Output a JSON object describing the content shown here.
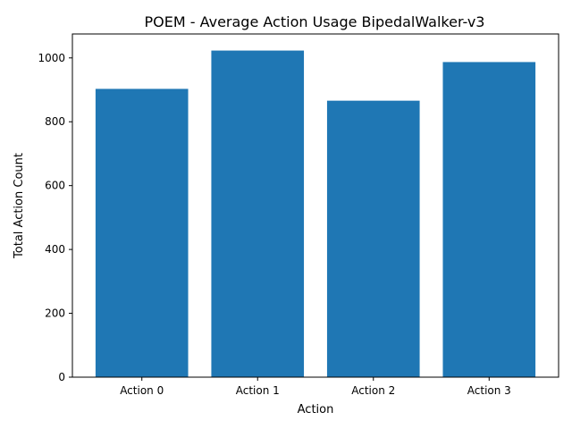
{
  "chart_data": {
    "type": "bar",
    "title": "POEM - Average Action Usage BipedalWalker-v3",
    "xlabel": "Action",
    "ylabel": "Total Action Count",
    "categories": [
      "Action 0",
      "Action 1",
      "Action 2",
      "Action 3"
    ],
    "values": [
      903,
      1023,
      866,
      987
    ],
    "ylim": [
      0,
      1075
    ],
    "yticks": [
      0,
      200,
      400,
      600,
      800,
      1000
    ],
    "bar_color": "#1f77b4",
    "grid": false,
    "legend": "none"
  }
}
